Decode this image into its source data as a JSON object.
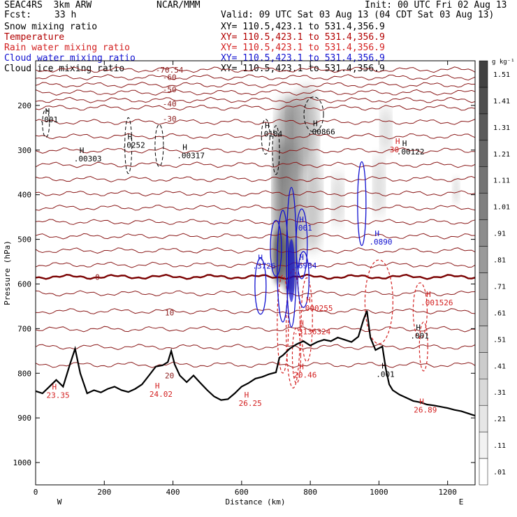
{
  "header": {
    "model": "SEAC4RS  3km ARW",
    "org": "NCAR/MMM",
    "init": "Init: 00 UTC Fri 02 Aug 13",
    "fcst_label": "Fcst:",
    "fcst_value": "33 h",
    "valid": "Valid: 09 UTC Sat 03 Aug 13 (04 CDT Sat 03 Aug 13)"
  },
  "fields": [
    {
      "name": "Snow mixing ratio",
      "xy": "XY= 110.5,423.1 to 531.4,356.9",
      "color": "#000000"
    },
    {
      "name": "Temperature",
      "xy": "XY= 110.5,423.1 to 531.4,356.9",
      "color": "#b20000"
    },
    {
      "name": "Rain water mixing ratio",
      "xy": "XY= 110.5,423.1 to 531.4,356.9",
      "color": "#d32020"
    },
    {
      "name": "Cloud water mixing ratio",
      "xy": "XY= 110.5,423.1 to 531.4,356.9",
      "color": "#1010d0"
    },
    {
      "name": "Cloud ice mixing ratio",
      "xy": "XY= 110.5,423.1 to 531.4,356.9",
      "color": "#000000"
    }
  ],
  "chart_data": {
    "type": "heatmap",
    "title": "",
    "xlabel": "Distance (km)",
    "ylabel": "Pressure (hPa)",
    "xlim": [
      0,
      1280
    ],
    "ylim": [
      1050,
      100
    ],
    "x_ticks": [
      0,
      200,
      400,
      600,
      800,
      1000,
      1200
    ],
    "y_ticks": [
      200,
      300,
      400,
      500,
      600,
      700,
      800,
      900,
      1000
    ],
    "x_end_labels": {
      "left": "W",
      "right": "E"
    },
    "colorbar": {
      "units": "g kg⁻¹",
      "levels": [
        ".01",
        ".11",
        ".21",
        ".31",
        ".41",
        ".51",
        ".61",
        ".71",
        ".81",
        ".91",
        "1.01",
        "1.11",
        "1.21",
        "1.31",
        "1.41",
        "1.51"
      ]
    },
    "isotherms": [
      {
        "temp_c": -70,
        "p": 120,
        "label": "-70.54"
      },
      {
        "temp_c": -60,
        "p": 137,
        "label": "-60"
      },
      {
        "temp_c": -50,
        "p": 164,
        "label": "-50"
      },
      {
        "temp_c": -40,
        "p": 196,
        "label": "-40"
      },
      {
        "temp_c": -30,
        "p": 230,
        "label": "-30"
      },
      {
        "temp_c": -20,
        "p": 262,
        "label": ""
      },
      {
        "temp_c": -10,
        "p": 297,
        "label": ""
      },
      {
        "temp_c": 0,
        "p": 584,
        "label": "0"
      },
      {
        "temp_c": 10,
        "p": 664,
        "label": "10"
      },
      {
        "temp_c": 20,
        "p": 805,
        "label": "20"
      }
    ],
    "terrain": {
      "x": [
        0,
        20,
        40,
        60,
        80,
        100,
        115,
        130,
        150,
        170,
        190,
        210,
        230,
        250,
        270,
        290,
        310,
        330,
        350,
        370,
        385,
        395,
        405,
        420,
        440,
        460,
        480,
        500,
        520,
        540,
        560,
        580,
        600,
        620,
        640,
        660,
        680,
        700,
        710,
        720,
        740,
        760,
        780,
        800,
        820,
        840,
        860,
        880,
        900,
        920,
        940,
        955,
        965,
        975,
        990,
        1010,
        1020,
        1030,
        1040,
        1060,
        1080,
        1100,
        1120,
        1140,
        1160,
        1180,
        1200,
        1220,
        1240,
        1260,
        1280
      ],
      "p": [
        840,
        845,
        830,
        815,
        830,
        780,
        745,
        800,
        845,
        838,
        843,
        835,
        830,
        838,
        842,
        835,
        825,
        805,
        785,
        782,
        775,
        750,
        780,
        805,
        820,
        805,
        822,
        838,
        852,
        860,
        858,
        845,
        830,
        822,
        812,
        808,
        802,
        798,
        765,
        760,
        745,
        735,
        728,
        738,
        730,
        725,
        728,
        720,
        725,
        730,
        718,
        680,
        660,
        720,
        748,
        740,
        790,
        825,
        838,
        848,
        855,
        862,
        865,
        870,
        872,
        875,
        878,
        882,
        885,
        890,
        895
      ]
    },
    "maxima": [
      {
        "x": 40,
        "p": 238,
        "label": ".001"
      },
      {
        "x": 140,
        "p": 325,
        "label": ".00303"
      },
      {
        "x": 280,
        "p": 295,
        "label": ".0252"
      },
      {
        "x": 440,
        "p": 318,
        "label": ".00317"
      },
      {
        "x": 680,
        "p": 270,
        "label": ".0104"
      },
      {
        "x": 820,
        "p": 265,
        "label": ".00866"
      },
      {
        "x": 1080,
        "p": 310,
        "label": ".00122"
      },
      {
        "x": 1060,
        "p": 305,
        "label": "30"
      },
      {
        "x": 780,
        "p": 480,
        "label": ".001"
      },
      {
        "x": 1000,
        "p": 512,
        "label": ".0890"
      },
      {
        "x": 660,
        "p": 566,
        "label": ".3726"
      },
      {
        "x": 780,
        "p": 565,
        "label": ".6984"
      },
      {
        "x": 800,
        "p": 660,
        "label": ".000255"
      },
      {
        "x": 1150,
        "p": 648,
        "label": ".001526"
      },
      {
        "x": 780,
        "p": 713,
        "label": ".3136324"
      },
      {
        "x": 1120,
        "p": 722,
        "label": ".001"
      },
      {
        "x": 780,
        "p": 810,
        "label": "20.46"
      },
      {
        "x": 1020,
        "p": 808,
        "label": ".001"
      },
      {
        "x": 60,
        "p": 855,
        "label": "23.35"
      },
      {
        "x": 360,
        "p": 853,
        "label": "24.02"
      },
      {
        "x": 620,
        "p": 873,
        "label": "26.25"
      },
      {
        "x": 1130,
        "p": 888,
        "label": "26.89"
      }
    ]
  }
}
